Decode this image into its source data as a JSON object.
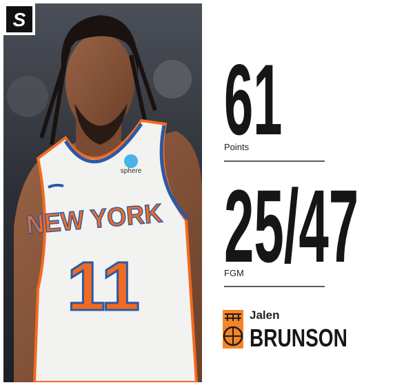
{
  "brand": {
    "logo_text": "S"
  },
  "photo": {
    "jersey_city": "NEW YORK",
    "jersey_number": "11",
    "sponsor": "sphere"
  },
  "stats": [
    {
      "value": 61,
      "label": "Points"
    },
    {
      "value": "25/47",
      "label": "FGM"
    }
  ],
  "player": {
    "first_name": "Jalen",
    "last_name": "BRUNSON"
  }
}
